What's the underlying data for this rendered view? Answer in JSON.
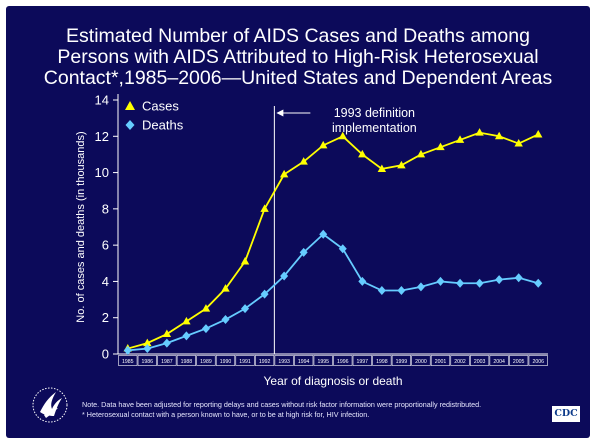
{
  "title_lines": [
    "Estimated Number of AIDS Cases and Deaths among",
    "Persons with AIDS Attributed to High-Risk Heterosexual",
    "Contact*,1985–2006—United States and Dependent Areas"
  ],
  "chart_data": {
    "type": "line",
    "x": [
      "1985",
      "1986",
      "1987",
      "1988",
      "1989",
      "1990",
      "1991",
      "1992",
      "1993",
      "1994",
      "1995",
      "1996",
      "1997",
      "1998",
      "1999",
      "2000",
      "2001",
      "2002",
      "2003",
      "2004",
      "2005",
      "2006"
    ],
    "series": [
      {
        "name": "Cases",
        "color": "#ffff00",
        "marker": "triangle",
        "values": [
          0.3,
          0.6,
          1.1,
          1.8,
          2.5,
          3.6,
          5.1,
          8.0,
          9.9,
          10.6,
          11.5,
          12.0,
          11.0,
          10.2,
          10.4,
          11.0,
          11.4,
          11.8,
          12.2,
          12.0,
          11.6,
          12.1
        ]
      },
      {
        "name": "Deaths",
        "color": "#66ccff",
        "marker": "diamond",
        "values": [
          0.2,
          0.3,
          0.6,
          1.0,
          1.4,
          1.9,
          2.5,
          3.3,
          4.3,
          5.6,
          6.6,
          5.8,
          4.0,
          3.5,
          3.5,
          3.7,
          4.0,
          3.9,
          3.9,
          4.1,
          4.2,
          3.9
        ]
      }
    ],
    "xlabel": "Year of diagnosis or death",
    "ylabel": "No. of cases and deaths (in thousands)",
    "ylim": [
      0,
      14
    ],
    "yticks": [
      0,
      2,
      4,
      6,
      8,
      10,
      12,
      14
    ],
    "legend_position": "top-left",
    "grid": false,
    "annotation": {
      "lines": [
        "1993 definition",
        "implementation"
      ],
      "at": "1993"
    }
  },
  "notes": [
    "Note. Data have been adjusted for reporting delays and cases without risk factor information were proportionally redistributed.",
    "* Heterosexual contact with a person known to have, or to be at high risk for, HIV infection."
  ],
  "logo_text": "CDC",
  "colors": {
    "background": "#0c0a5a",
    "text": "#ffffff",
    "cases": "#ffff00",
    "deaths": "#66ccff"
  }
}
